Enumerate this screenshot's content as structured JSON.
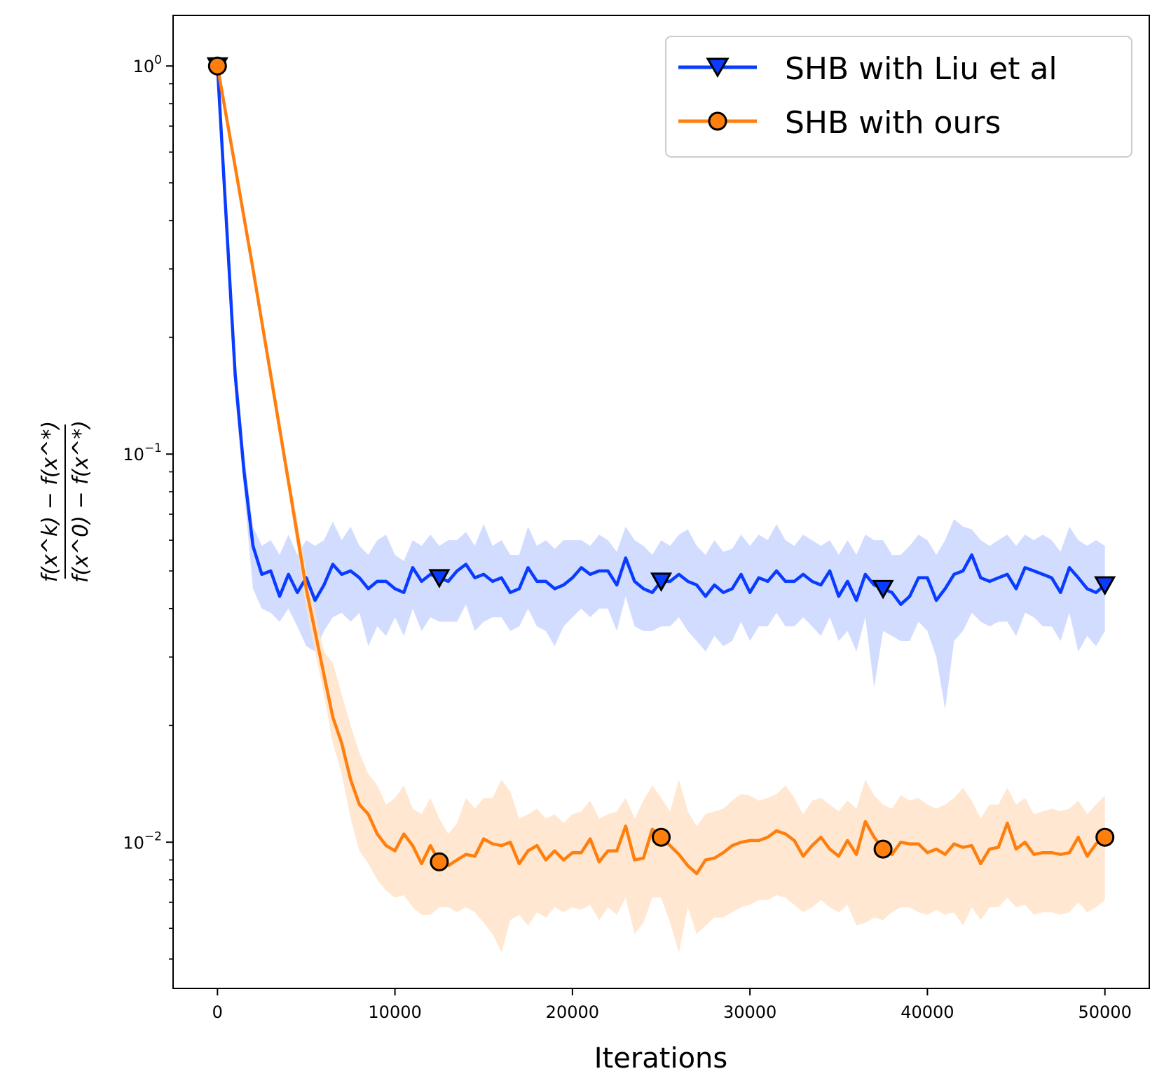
{
  "chart_data": {
    "type": "line",
    "yscale": "log",
    "xlabel": "Iterations",
    "ylabel": {
      "numerator": "f(x^k) − f(x^*)",
      "denominator": "f(x^0) − f(x^*)"
    },
    "xlim": [
      -2500,
      52500
    ],
    "ylim": [
      0.0042,
      1.35
    ],
    "xticks": [
      0,
      10000,
      20000,
      30000,
      40000,
      50000
    ],
    "xtick_labels": [
      "0",
      "10000",
      "20000",
      "30000",
      "40000",
      "50000"
    ],
    "yticks": [
      1,
      0.1,
      0.01
    ],
    "ytick_labels": [
      {
        "base": "10",
        "exp": "0"
      },
      {
        "base": "10",
        "exp": "−1"
      },
      {
        "base": "10",
        "exp": "−2"
      }
    ],
    "legend": {
      "loc": "upper right"
    },
    "series": [
      {
        "name": "SHB with Liu et al",
        "color": "#0a3cff",
        "band_color": "#c9d6ff",
        "marker": "triangle-down",
        "marker_x": [
          0,
          12500,
          25000,
          37500,
          50000
        ],
        "x": [
          0,
          1000,
          1500,
          2000,
          2500,
          3000,
          3500,
          4000,
          4500,
          5000,
          5500,
          6000,
          6500,
          7000,
          7500,
          8000,
          8500,
          9000,
          9500,
          10000,
          10500,
          11000,
          11500,
          12000,
          12500,
          13000,
          13500,
          14000,
          14500,
          15000,
          15500,
          16000,
          16500,
          17000,
          17500,
          18000,
          18500,
          19000,
          19500,
          20000,
          20500,
          21000,
          21500,
          22000,
          22500,
          23000,
          23500,
          24000,
          24500,
          25000,
          25500,
          26000,
          26500,
          27000,
          27500,
          28000,
          28500,
          29000,
          29500,
          30000,
          30500,
          31000,
          31500,
          32000,
          32500,
          33000,
          33500,
          34000,
          34500,
          35000,
          35500,
          36000,
          36500,
          37000,
          37500,
          38000,
          38500,
          39000,
          39500,
          40000,
          40500,
          41000,
          41500,
          42000,
          42500,
          43000,
          43500,
          44000,
          44500,
          45000,
          45500,
          46000,
          46500,
          47000,
          47500,
          48000,
          48500,
          49000,
          49500,
          50000
        ],
        "values": [
          1.0,
          0.16,
          0.09,
          0.058,
          0.049,
          0.05,
          0.043,
          0.049,
          0.044,
          0.048,
          0.042,
          0.046,
          0.052,
          0.049,
          0.05,
          0.048,
          0.045,
          0.047,
          0.047,
          0.045,
          0.044,
          0.051,
          0.047,
          0.049,
          0.048,
          0.047,
          0.05,
          0.052,
          0.048,
          0.049,
          0.047,
          0.048,
          0.044,
          0.045,
          0.051,
          0.047,
          0.047,
          0.045,
          0.046,
          0.048,
          0.051,
          0.049,
          0.05,
          0.05,
          0.046,
          0.054,
          0.047,
          0.045,
          0.044,
          0.047,
          0.047,
          0.049,
          0.047,
          0.046,
          0.043,
          0.046,
          0.044,
          0.045,
          0.049,
          0.044,
          0.048,
          0.047,
          0.05,
          0.047,
          0.047,
          0.049,
          0.047,
          0.046,
          0.05,
          0.043,
          0.047,
          0.042,
          0.049,
          0.046,
          0.045,
          0.044,
          0.041,
          0.043,
          0.048,
          0.048,
          0.042,
          0.045,
          0.049,
          0.05,
          0.055,
          0.048,
          0.047,
          0.048,
          0.049,
          0.045,
          0.051,
          0.05,
          0.049,
          0.048,
          0.044,
          0.051,
          0.048,
          0.045,
          0.044,
          0.046
        ],
        "band_upper": [
          1.0,
          0.18,
          0.1,
          0.065,
          0.058,
          0.06,
          0.055,
          0.062,
          0.055,
          0.06,
          0.058,
          0.06,
          0.067,
          0.06,
          0.065,
          0.058,
          0.055,
          0.06,
          0.062,
          0.055,
          0.053,
          0.06,
          0.058,
          0.062,
          0.058,
          0.06,
          0.06,
          0.063,
          0.058,
          0.066,
          0.058,
          0.06,
          0.055,
          0.055,
          0.065,
          0.058,
          0.06,
          0.057,
          0.06,
          0.06,
          0.06,
          0.058,
          0.062,
          0.06,
          0.056,
          0.065,
          0.06,
          0.058,
          0.055,
          0.06,
          0.058,
          0.062,
          0.064,
          0.058,
          0.055,
          0.06,
          0.056,
          0.057,
          0.062,
          0.058,
          0.062,
          0.06,
          0.066,
          0.06,
          0.058,
          0.062,
          0.06,
          0.058,
          0.06,
          0.055,
          0.06,
          0.055,
          0.062,
          0.06,
          0.06,
          0.055,
          0.055,
          0.058,
          0.062,
          0.06,
          0.055,
          0.06,
          0.068,
          0.065,
          0.064,
          0.06,
          0.058,
          0.06,
          0.062,
          0.058,
          0.062,
          0.06,
          0.062,
          0.06,
          0.056,
          0.065,
          0.06,
          0.058,
          0.06,
          0.058
        ],
        "band_lower": [
          1.0,
          0.14,
          0.08,
          0.045,
          0.04,
          0.039,
          0.037,
          0.04,
          0.036,
          0.032,
          0.031,
          0.035,
          0.038,
          0.039,
          0.037,
          0.039,
          0.032,
          0.036,
          0.034,
          0.038,
          0.034,
          0.04,
          0.035,
          0.038,
          0.037,
          0.037,
          0.037,
          0.041,
          0.035,
          0.037,
          0.038,
          0.038,
          0.035,
          0.036,
          0.04,
          0.036,
          0.035,
          0.032,
          0.036,
          0.038,
          0.04,
          0.038,
          0.04,
          0.04,
          0.035,
          0.043,
          0.036,
          0.035,
          0.035,
          0.036,
          0.036,
          0.038,
          0.035,
          0.033,
          0.031,
          0.034,
          0.032,
          0.033,
          0.037,
          0.033,
          0.036,
          0.036,
          0.039,
          0.036,
          0.036,
          0.038,
          0.036,
          0.034,
          0.038,
          0.033,
          0.035,
          0.031,
          0.038,
          0.025,
          0.035,
          0.034,
          0.033,
          0.033,
          0.037,
          0.035,
          0.03,
          0.022,
          0.033,
          0.035,
          0.039,
          0.037,
          0.036,
          0.037,
          0.037,
          0.034,
          0.039,
          0.038,
          0.036,
          0.036,
          0.033,
          0.039,
          0.031,
          0.034,
          0.032,
          0.035
        ]
      },
      {
        "name": "SHB with ours",
        "color": "#ff7f0e",
        "band_color": "#ffe3c9",
        "marker": "circle",
        "marker_x": [
          0,
          12500,
          25000,
          37500,
          50000
        ],
        "x": [
          0,
          1000,
          2000,
          3000,
          4000,
          5000,
          6000,
          6500,
          7000,
          7500,
          8000,
          8500,
          9000,
          9500,
          10000,
          10500,
          11000,
          11500,
          12000,
          12500,
          13000,
          13500,
          14000,
          14500,
          15000,
          15500,
          16000,
          16500,
          17000,
          17500,
          18000,
          18500,
          19000,
          19500,
          20000,
          20500,
          21000,
          21500,
          22000,
          22500,
          23000,
          23500,
          24000,
          24500,
          25000,
          25500,
          26000,
          26500,
          27000,
          27500,
          28000,
          28500,
          29000,
          29500,
          30000,
          30500,
          31000,
          31500,
          32000,
          32500,
          33000,
          33500,
          34000,
          34500,
          35000,
          35500,
          36000,
          36500,
          37000,
          37500,
          38000,
          38500,
          39000,
          39500,
          40000,
          40500,
          41000,
          41500,
          42000,
          42500,
          43000,
          43500,
          44000,
          44500,
          45000,
          45500,
          46000,
          46500,
          47000,
          47500,
          48000,
          48500,
          49000,
          49500,
          50000
        ],
        "values": [
          1.0,
          0.55,
          0.3,
          0.16,
          0.085,
          0.045,
          0.027,
          0.021,
          0.018,
          0.0145,
          0.0125,
          0.0118,
          0.0105,
          0.0098,
          0.0095,
          0.0105,
          0.0098,
          0.0088,
          0.0098,
          0.0089,
          0.0087,
          0.009,
          0.0093,
          0.0092,
          0.0102,
          0.0099,
          0.0098,
          0.01,
          0.0088,
          0.0095,
          0.0098,
          0.009,
          0.0095,
          0.009,
          0.0094,
          0.0094,
          0.0102,
          0.0089,
          0.0095,
          0.0095,
          0.011,
          0.009,
          0.0091,
          0.0108,
          0.0103,
          0.0098,
          0.0093,
          0.0087,
          0.0083,
          0.009,
          0.0091,
          0.0094,
          0.0098,
          0.01,
          0.0101,
          0.0101,
          0.0103,
          0.0107,
          0.0105,
          0.0101,
          0.0092,
          0.0098,
          0.0103,
          0.0096,
          0.0092,
          0.0101,
          0.0093,
          0.0113,
          0.0103,
          0.0096,
          0.0093,
          0.01,
          0.0099,
          0.0099,
          0.0094,
          0.0096,
          0.0093,
          0.0099,
          0.0097,
          0.0098,
          0.0088,
          0.0096,
          0.0097,
          0.0112,
          0.0096,
          0.01,
          0.0093,
          0.0094,
          0.0094,
          0.0093,
          0.0094,
          0.0103,
          0.0092,
          0.0099,
          0.0103
        ],
        "band_upper": [
          1.0,
          0.56,
          0.31,
          0.17,
          0.09,
          0.05,
          0.031,
          0.029,
          0.024,
          0.02,
          0.017,
          0.015,
          0.014,
          0.0125,
          0.013,
          0.014,
          0.0122,
          0.0118,
          0.013,
          0.0115,
          0.0105,
          0.0112,
          0.013,
          0.0122,
          0.013,
          0.013,
          0.0145,
          0.0135,
          0.0115,
          0.0118,
          0.0122,
          0.0115,
          0.0118,
          0.0112,
          0.0118,
          0.012,
          0.0128,
          0.0115,
          0.0118,
          0.012,
          0.013,
          0.0115,
          0.0128,
          0.014,
          0.013,
          0.012,
          0.0145,
          0.012,
          0.011,
          0.0118,
          0.012,
          0.0122,
          0.0128,
          0.0133,
          0.0132,
          0.0128,
          0.013,
          0.0133,
          0.014,
          0.013,
          0.0118,
          0.0128,
          0.013,
          0.0125,
          0.012,
          0.0128,
          0.0122,
          0.0145,
          0.0132,
          0.0125,
          0.0122,
          0.0132,
          0.0128,
          0.013,
          0.0125,
          0.0122,
          0.0125,
          0.013,
          0.0138,
          0.0128,
          0.0115,
          0.0125,
          0.0125,
          0.0138,
          0.0125,
          0.013,
          0.0118,
          0.012,
          0.0122,
          0.012,
          0.0122,
          0.0128,
          0.0118,
          0.0125,
          0.0132
        ],
        "band_lower": [
          1.0,
          0.54,
          0.29,
          0.15,
          0.08,
          0.04,
          0.024,
          0.018,
          0.015,
          0.0115,
          0.0095,
          0.0088,
          0.008,
          0.0075,
          0.0072,
          0.0073,
          0.0068,
          0.0065,
          0.0065,
          0.0068,
          0.0068,
          0.0066,
          0.0068,
          0.0066,
          0.0062,
          0.0058,
          0.0052,
          0.0063,
          0.0065,
          0.0061,
          0.0066,
          0.0064,
          0.0068,
          0.0066,
          0.0068,
          0.0067,
          0.0069,
          0.0063,
          0.0068,
          0.0065,
          0.0072,
          0.0058,
          0.0062,
          0.0072,
          0.0072,
          0.0062,
          0.0052,
          0.0068,
          0.0058,
          0.0061,
          0.0064,
          0.0064,
          0.0066,
          0.0068,
          0.0069,
          0.0071,
          0.0071,
          0.0073,
          0.0072,
          0.0069,
          0.0066,
          0.0068,
          0.0071,
          0.0068,
          0.0066,
          0.0069,
          0.0061,
          0.0062,
          0.0064,
          0.0063,
          0.0066,
          0.0068,
          0.0068,
          0.0066,
          0.0065,
          0.0067,
          0.0065,
          0.0066,
          0.0061,
          0.0068,
          0.0063,
          0.0068,
          0.0068,
          0.0072,
          0.0068,
          0.0069,
          0.0065,
          0.0066,
          0.0066,
          0.0065,
          0.0066,
          0.007,
          0.0066,
          0.0068,
          0.0071
        ]
      }
    ]
  }
}
